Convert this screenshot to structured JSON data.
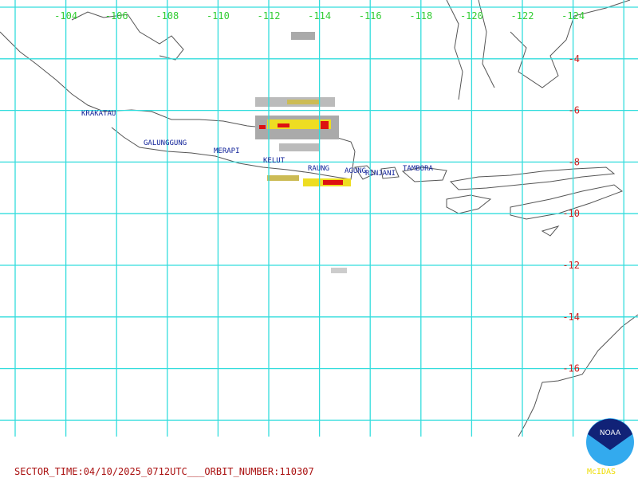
{
  "map": {
    "longitude_labels": [
      "-104",
      "-106",
      "-108",
      "-110",
      "-112",
      "-114",
      "-116",
      "-118",
      "-120",
      "-122",
      "-124"
    ],
    "latitude_labels": [
      "-4",
      "-6",
      "-8",
      "-10",
      "-12",
      "-14",
      "-16"
    ],
    "volcanoes": [
      "KRAKATAU",
      "GALUNGGUNG",
      "MERAPI",
      "KELUT",
      "RAUNG",
      "AGUNG",
      "RINJANI",
      "TAMBORA"
    ],
    "footer": "SECTOR_TIME:04/10/2025_0712UTC___ORBIT_NUMBER:110307",
    "logo": {
      "name": "NOAA",
      "software": "McIDAS"
    }
  }
}
